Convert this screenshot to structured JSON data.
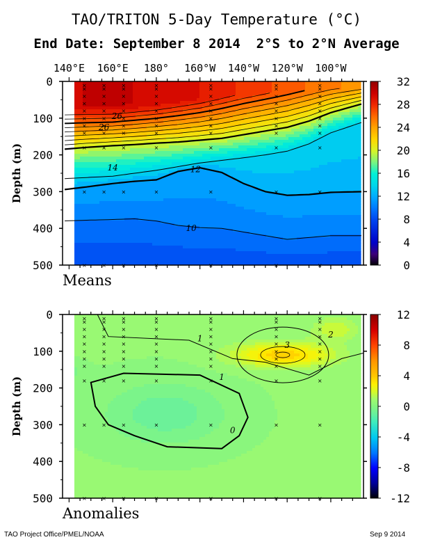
{
  "header": {
    "title": "TAO/TRITON 5-Day Temperature (°C)",
    "subtitle": "End Date: September 8 2014  2°S to 2°N Average"
  },
  "footer": {
    "left": "TAO Project Office/PMEL/NOAA",
    "right": "Sep  9 2014"
  },
  "colors": {
    "frame": "#000000",
    "contour": "#000000",
    "station_marker": "#000000"
  },
  "chart_data": [
    {
      "type": "heatmap",
      "panel": "Means",
      "panel_label": "Means",
      "xlabel": "",
      "ylabel": "Depth (m)",
      "x_ticks": [
        "140°E",
        "160°E",
        "180°",
        "160°W",
        "140°W",
        "120°W",
        "100°W"
      ],
      "x_tick_lon": [
        140,
        160,
        180,
        200,
        220,
        240,
        260
      ],
      "xlim_lon": [
        137,
        275
      ],
      "y_ticks": [
        0,
        100,
        200,
        300,
        400,
        500
      ],
      "ylim": [
        0,
        500
      ],
      "y_reversed": true,
      "colorbar": {
        "ticks": [
          0,
          4,
          8,
          12,
          16,
          20,
          24,
          28,
          32
        ],
        "range": [
          0,
          32
        ]
      },
      "contour_labels": [
        {
          "text": "26",
          "lon": 162,
          "depth": 95
        },
        {
          "text": "26",
          "lon": 156,
          "depth": 125
        },
        {
          "text": "14",
          "lon": 160,
          "depth": 235
        },
        {
          "text": "12",
          "lon": 198,
          "depth": 240
        },
        {
          "text": "10",
          "lon": 196,
          "depth": 400
        }
      ],
      "thermocline_depth_by_lon": {
        "lon": [
          137,
          147,
          160,
          170,
          180,
          190,
          200,
          210,
          220,
          230,
          240,
          250,
          260,
          275
        ],
        "t20": [
          185,
          180,
          175,
          172,
          168,
          165,
          160,
          155,
          145,
          135,
          125,
          108,
          85,
          60
        ],
        "t14": [
          265,
          262,
          258,
          250,
          242,
          232,
          222,
          215,
          208,
          200,
          190,
          170,
          140,
          110
        ],
        "t12": [
          295,
          288,
          278,
          272,
          268,
          245,
          235,
          248,
          278,
          300,
          310,
          308,
          302,
          300
        ],
        "t10": [
          380,
          378,
          376,
          374,
          380,
          392,
          398,
          400,
          410,
          420,
          430,
          425,
          420,
          420
        ]
      },
      "stations": [
        {
          "lon": 147,
          "depths": [
            10,
            20,
            40,
            60,
            80,
            100,
            120,
            140,
            180,
            300,
            500
          ]
        },
        {
          "lon": 156,
          "depths": [
            10,
            20,
            40,
            60,
            80,
            100,
            120,
            140,
            180,
            300,
            500
          ]
        },
        {
          "lon": 165,
          "depths": [
            10,
            20,
            40,
            60,
            80,
            100,
            120,
            140,
            180,
            300,
            500
          ]
        },
        {
          "lon": 180,
          "depths": [
            10,
            20,
            40,
            60,
            80,
            100,
            120,
            140,
            180,
            300,
            500
          ]
        },
        {
          "lon": 205,
          "depths": [
            10,
            20,
            40,
            60,
            80,
            100,
            120,
            140,
            180,
            300,
            500
          ]
        },
        {
          "lon": 235,
          "depths": [
            10,
            20,
            40,
            60,
            80,
            100,
            120,
            140,
            180,
            300,
            500
          ]
        },
        {
          "lon": 255,
          "depths": [
            10,
            20,
            40,
            60,
            80,
            100,
            120,
            140,
            180,
            300,
            500
          ]
        }
      ]
    },
    {
      "type": "heatmap",
      "panel": "Anomalies",
      "panel_label": "Anomalies",
      "xlabel": "",
      "ylabel": "Depth (m)",
      "x_ticks": [],
      "x_tick_lon": [
        140,
        160,
        180,
        200,
        220,
        240,
        260
      ],
      "xlim_lon": [
        137,
        275
      ],
      "y_ticks": [
        0,
        100,
        200,
        300,
        400,
        500
      ],
      "ylim": [
        0,
        500
      ],
      "y_reversed": true,
      "colorbar": {
        "ticks": [
          -12,
          -8,
          -4,
          0,
          4,
          8,
          12
        ],
        "range": [
          -12,
          12
        ]
      },
      "contour_labels": [
        {
          "text": "1",
          "lon": 200,
          "depth": 65
        },
        {
          "text": "3",
          "lon": 240,
          "depth": 83
        },
        {
          "text": "2",
          "lon": 260,
          "depth": 55
        },
        {
          "text": "1",
          "lon": 210,
          "depth": 170
        },
        {
          "text": "0",
          "lon": 215,
          "depth": 315
        }
      ],
      "warm_core": {
        "lon": 238,
        "depth": 110,
        "max": 3.3
      },
      "cool_region": {
        "lon_range": [
          150,
          218
        ],
        "depth_range": [
          160,
          380
        ],
        "min": -1.4
      },
      "stations": [
        {
          "lon": 147,
          "depths": [
            10,
            20,
            40,
            60,
            80,
            100,
            120,
            140,
            180,
            300,
            500
          ]
        },
        {
          "lon": 156,
          "depths": [
            10,
            20,
            40,
            60,
            80,
            100,
            120,
            140,
            180,
            300,
            500
          ]
        },
        {
          "lon": 165,
          "depths": [
            10,
            20,
            40,
            60,
            80,
            100,
            120,
            140,
            180,
            300,
            500
          ]
        },
        {
          "lon": 180,
          "depths": [
            10,
            20,
            40,
            60,
            80,
            100,
            120,
            140,
            180,
            300,
            500
          ]
        },
        {
          "lon": 205,
          "depths": [
            10,
            20,
            40,
            60,
            80,
            100,
            120,
            140,
            180,
            300,
            500
          ]
        },
        {
          "lon": 235,
          "depths": [
            10,
            20,
            40,
            60,
            80,
            100,
            120,
            140,
            180,
            300,
            500
          ]
        },
        {
          "lon": 255,
          "depths": [
            10,
            20,
            40,
            60,
            80,
            100,
            120,
            140,
            180,
            300,
            500
          ]
        }
      ]
    }
  ]
}
